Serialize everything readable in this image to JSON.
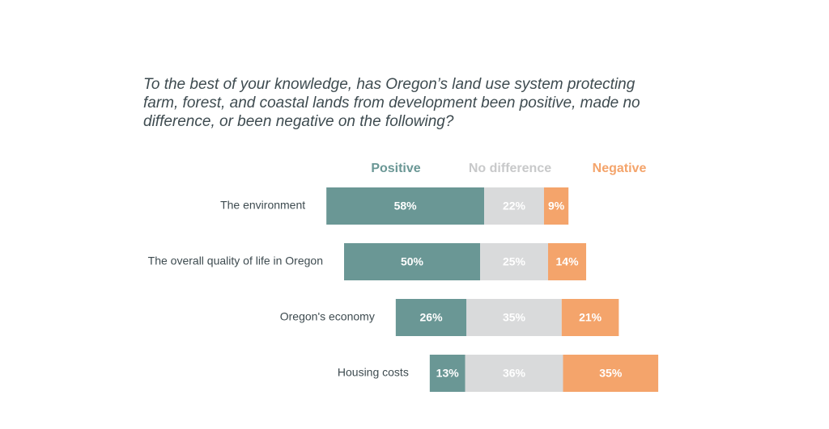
{
  "chart_data": {
    "type": "bar",
    "orientation": "horizontal",
    "stacked": true,
    "diverging": true,
    "title": "To the best of your knowledge, has Oregon’s land use system protecting farm, forest, and coastal lands from development been positive, made no difference, or been negative on the following?",
    "categories": [
      "The environment",
      "The overall quality of life in Oregon",
      "Oregon's economy",
      "Housing costs"
    ],
    "series": [
      {
        "name": "Positive",
        "color": "#6a9795",
        "values": [
          58,
          50,
          26,
          13
        ],
        "value_labels": [
          "58%",
          "50%",
          "26%",
          "13%"
        ]
      },
      {
        "name": "No difference",
        "color": "#d9dadb",
        "values": [
          22,
          25,
          35,
          36
        ],
        "value_labels": [
          "22%",
          "25%",
          "35%",
          "36%"
        ]
      },
      {
        "name": "Negative",
        "color": "#f4a46b",
        "values": [
          9,
          14,
          21,
          35
        ],
        "value_labels": [
          "9%",
          "14%",
          "21%",
          "35%"
        ]
      }
    ]
  }
}
